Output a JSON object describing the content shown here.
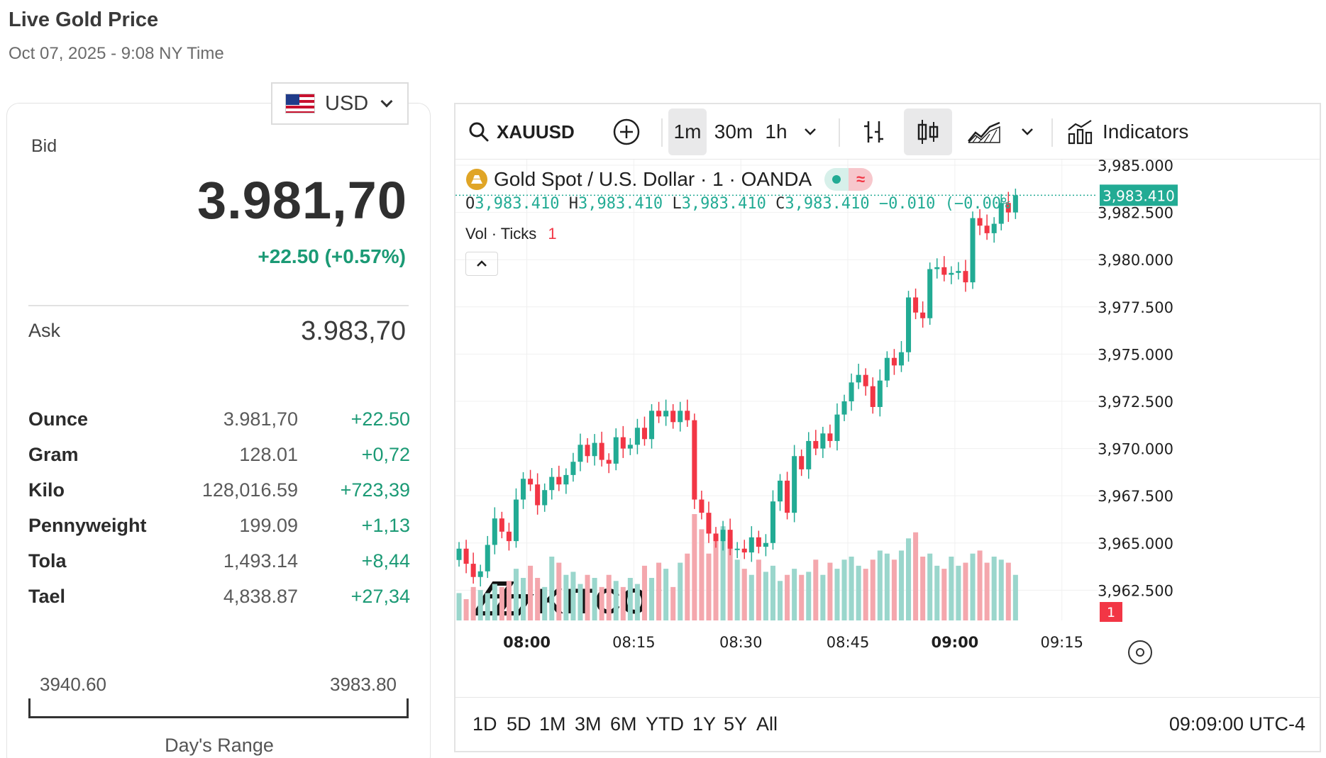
{
  "header": {
    "title": "Live Gold Price",
    "subtitle": "Oct 07, 2025 - 9:08 NY Time"
  },
  "currency": {
    "selected": "USD",
    "flag_icon": "us-flag-icon"
  },
  "quote": {
    "bid_label": "Bid",
    "bid_value": "3.981,70",
    "bid_change": "+22.50 (+0.57%)",
    "ask_label": "Ask",
    "ask_value": "3.983,70"
  },
  "units": [
    {
      "name": "Ounce",
      "price": "3.981,70",
      "change": "+22.50"
    },
    {
      "name": "Gram",
      "price": "128.01",
      "change": "+0,72"
    },
    {
      "name": "Kilo",
      "price": "128,016.59",
      "change": "+723,39"
    },
    {
      "name": "Pennyweight",
      "price": "199.09",
      "change": "+1,13"
    },
    {
      "name": "Tola",
      "price": "1,493.14",
      "change": "+8,44"
    },
    {
      "name": "Tael",
      "price": "4,838.87",
      "change": "+27,34"
    }
  ],
  "days_range": {
    "low": "3940.60",
    "high": "3983.80",
    "label": "Day's Range"
  },
  "toolbar": {
    "symbol": "XAUUSD",
    "intervals": [
      "1m",
      "30m",
      "1h"
    ],
    "active_interval": "1m",
    "indicators_label": "Indicators"
  },
  "legend": {
    "title": "Gold Spot / U.S. Dollar · 1 · OANDA",
    "o_label": "O",
    "o_value": "3,983.410",
    "h_label": "H",
    "h_value": "3,983.410",
    "l_label": "L",
    "l_value": "3,983.410",
    "c_label": "C",
    "c_value": "3,983.410",
    "change": "−0.010 (−0.00%)",
    "vol_label": "Vol · Ticks",
    "vol_value": "1"
  },
  "watermark": "KITCO",
  "periods": [
    "1D",
    "5D",
    "1M",
    "3M",
    "6M",
    "YTD",
    "1Y",
    "5Y",
    "All"
  ],
  "clock": "09:09:00 UTC-4",
  "colors": {
    "up": "#22ab94",
    "down": "#f23645",
    "vol_up": "#9ad6cc",
    "vol_down": "#f4a7ad"
  },
  "chart_data": {
    "type": "candlestick",
    "title": "Gold Spot / U.S. Dollar · 1 · OANDA",
    "y_ticks": [
      "3,985.000",
      "3,982.500",
      "3,980.000",
      "3,977.500",
      "3,975.000",
      "3,972.500",
      "3,970.000",
      "3,967.500",
      "3,965.000",
      "3,962.500"
    ],
    "x_ticks": [
      "08:00",
      "08:15",
      "08:30",
      "08:45",
      "09:00",
      "09:15"
    ],
    "bold_x_ticks": [
      "08:00",
      "09:00"
    ],
    "ylim": [
      3960.9,
      3985.3
    ],
    "x_start": "07:50",
    "x_end": "09:20",
    "last_price": "3,983.410",
    "vol_badge": "1",
    "candles_close": [
      3964.7,
      3963.9,
      3963.2,
      3963.5,
      3964.9,
      3966.3,
      3965.6,
      3965.1,
      3967.3,
      3968.4,
      3968.1,
      3967.0,
      3967.8,
      3968.5,
      3968.1,
      3968.6,
      3969.3,
      3970.2,
      3969.6,
      3970.3,
      3969.4,
      3969.2,
      3970.6,
      3970.0,
      3970.2,
      3971.1,
      3970.5,
      3972.0,
      3971.7,
      3972.0,
      3971.4,
      3972.0,
      3971.5,
      3967.3,
      3966.6,
      3965.5,
      3965.1,
      3965.7,
      3964.7,
      3964.7,
      3964.5,
      3965.3,
      3964.8,
      3965.0,
      3967.2,
      3968.3,
      3966.6,
      3969.6,
      3968.9,
      3970.4,
      3970.0,
      3970.8,
      3970.4,
      3971.8,
      3972.5,
      3973.5,
      3973.9,
      3973.3,
      3972.2,
      3973.6,
      3974.8,
      3974.4,
      3975.1,
      3978.0,
      3977.2,
      3976.9,
      3979.5,
      3979.6,
      3979.2,
      3979.3,
      3979.4,
      3978.8,
      3982.2,
      3981.8,
      3981.4,
      3981.9,
      3983.0,
      3982.5,
      3983.41
    ],
    "volumes": [
      18,
      14,
      22,
      20,
      18,
      24,
      22,
      26,
      34,
      28,
      36,
      28,
      22,
      42,
      38,
      30,
      32,
      24,
      30,
      28,
      22,
      30,
      26,
      22,
      28,
      24,
      36,
      28,
      38,
      34,
      22,
      38,
      44,
      70,
      60,
      44,
      56,
      62,
      54,
      40,
      34,
      30,
      40,
      32,
      36,
      26,
      30,
      34,
      30,
      32,
      40,
      30,
      38,
      34,
      40,
      42,
      36,
      34,
      40,
      46,
      44,
      40,
      46,
      54,
      58,
      42,
      44,
      36,
      34,
      42,
      36,
      38,
      44,
      46,
      38,
      42,
      40,
      38,
      30
    ]
  }
}
